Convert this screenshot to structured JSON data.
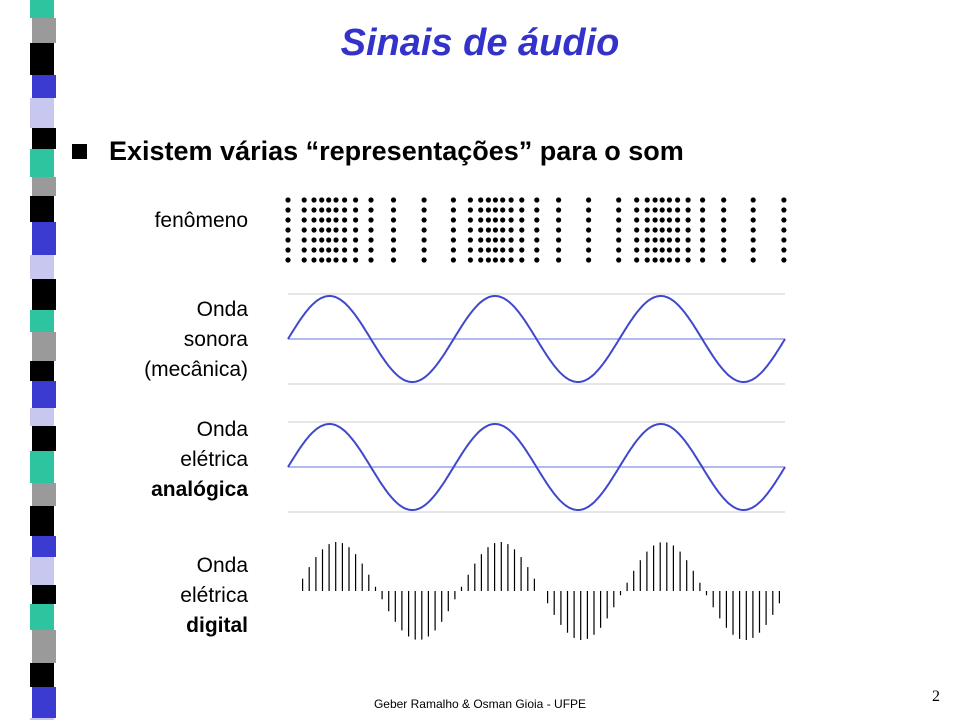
{
  "slide": {
    "title": "Sinais de áudio",
    "bullet": "Existem várias “representações” para o som",
    "footer": "Geber Ramalho & Osman Gioia - UFPE",
    "page_number": "2"
  },
  "rows": {
    "fenomeno": {
      "label": "fenômeno"
    },
    "mecanica": {
      "line1": "Onda",
      "line2": "sonora",
      "line3": "(mecânica)"
    },
    "analogica": {
      "line1": "Onda",
      "line2": "elétrica",
      "line3": "analógica"
    },
    "digital": {
      "line1": "Onda",
      "line2": "elétrica",
      "line3": "digital"
    }
  },
  "colors": {
    "title": "#3333cc",
    "wave": "#3f48cc",
    "axis": "#8090e8",
    "grid": "#cccccc",
    "strip": [
      "#2ec4a0",
      "#9a9a9a",
      "#000000",
      "#3b3bd1",
      "#c7c7f0",
      "#000000"
    ]
  },
  "waves": {
    "cycles": 3
  },
  "icons": {
    "bullet": "square-bullet-icon"
  }
}
